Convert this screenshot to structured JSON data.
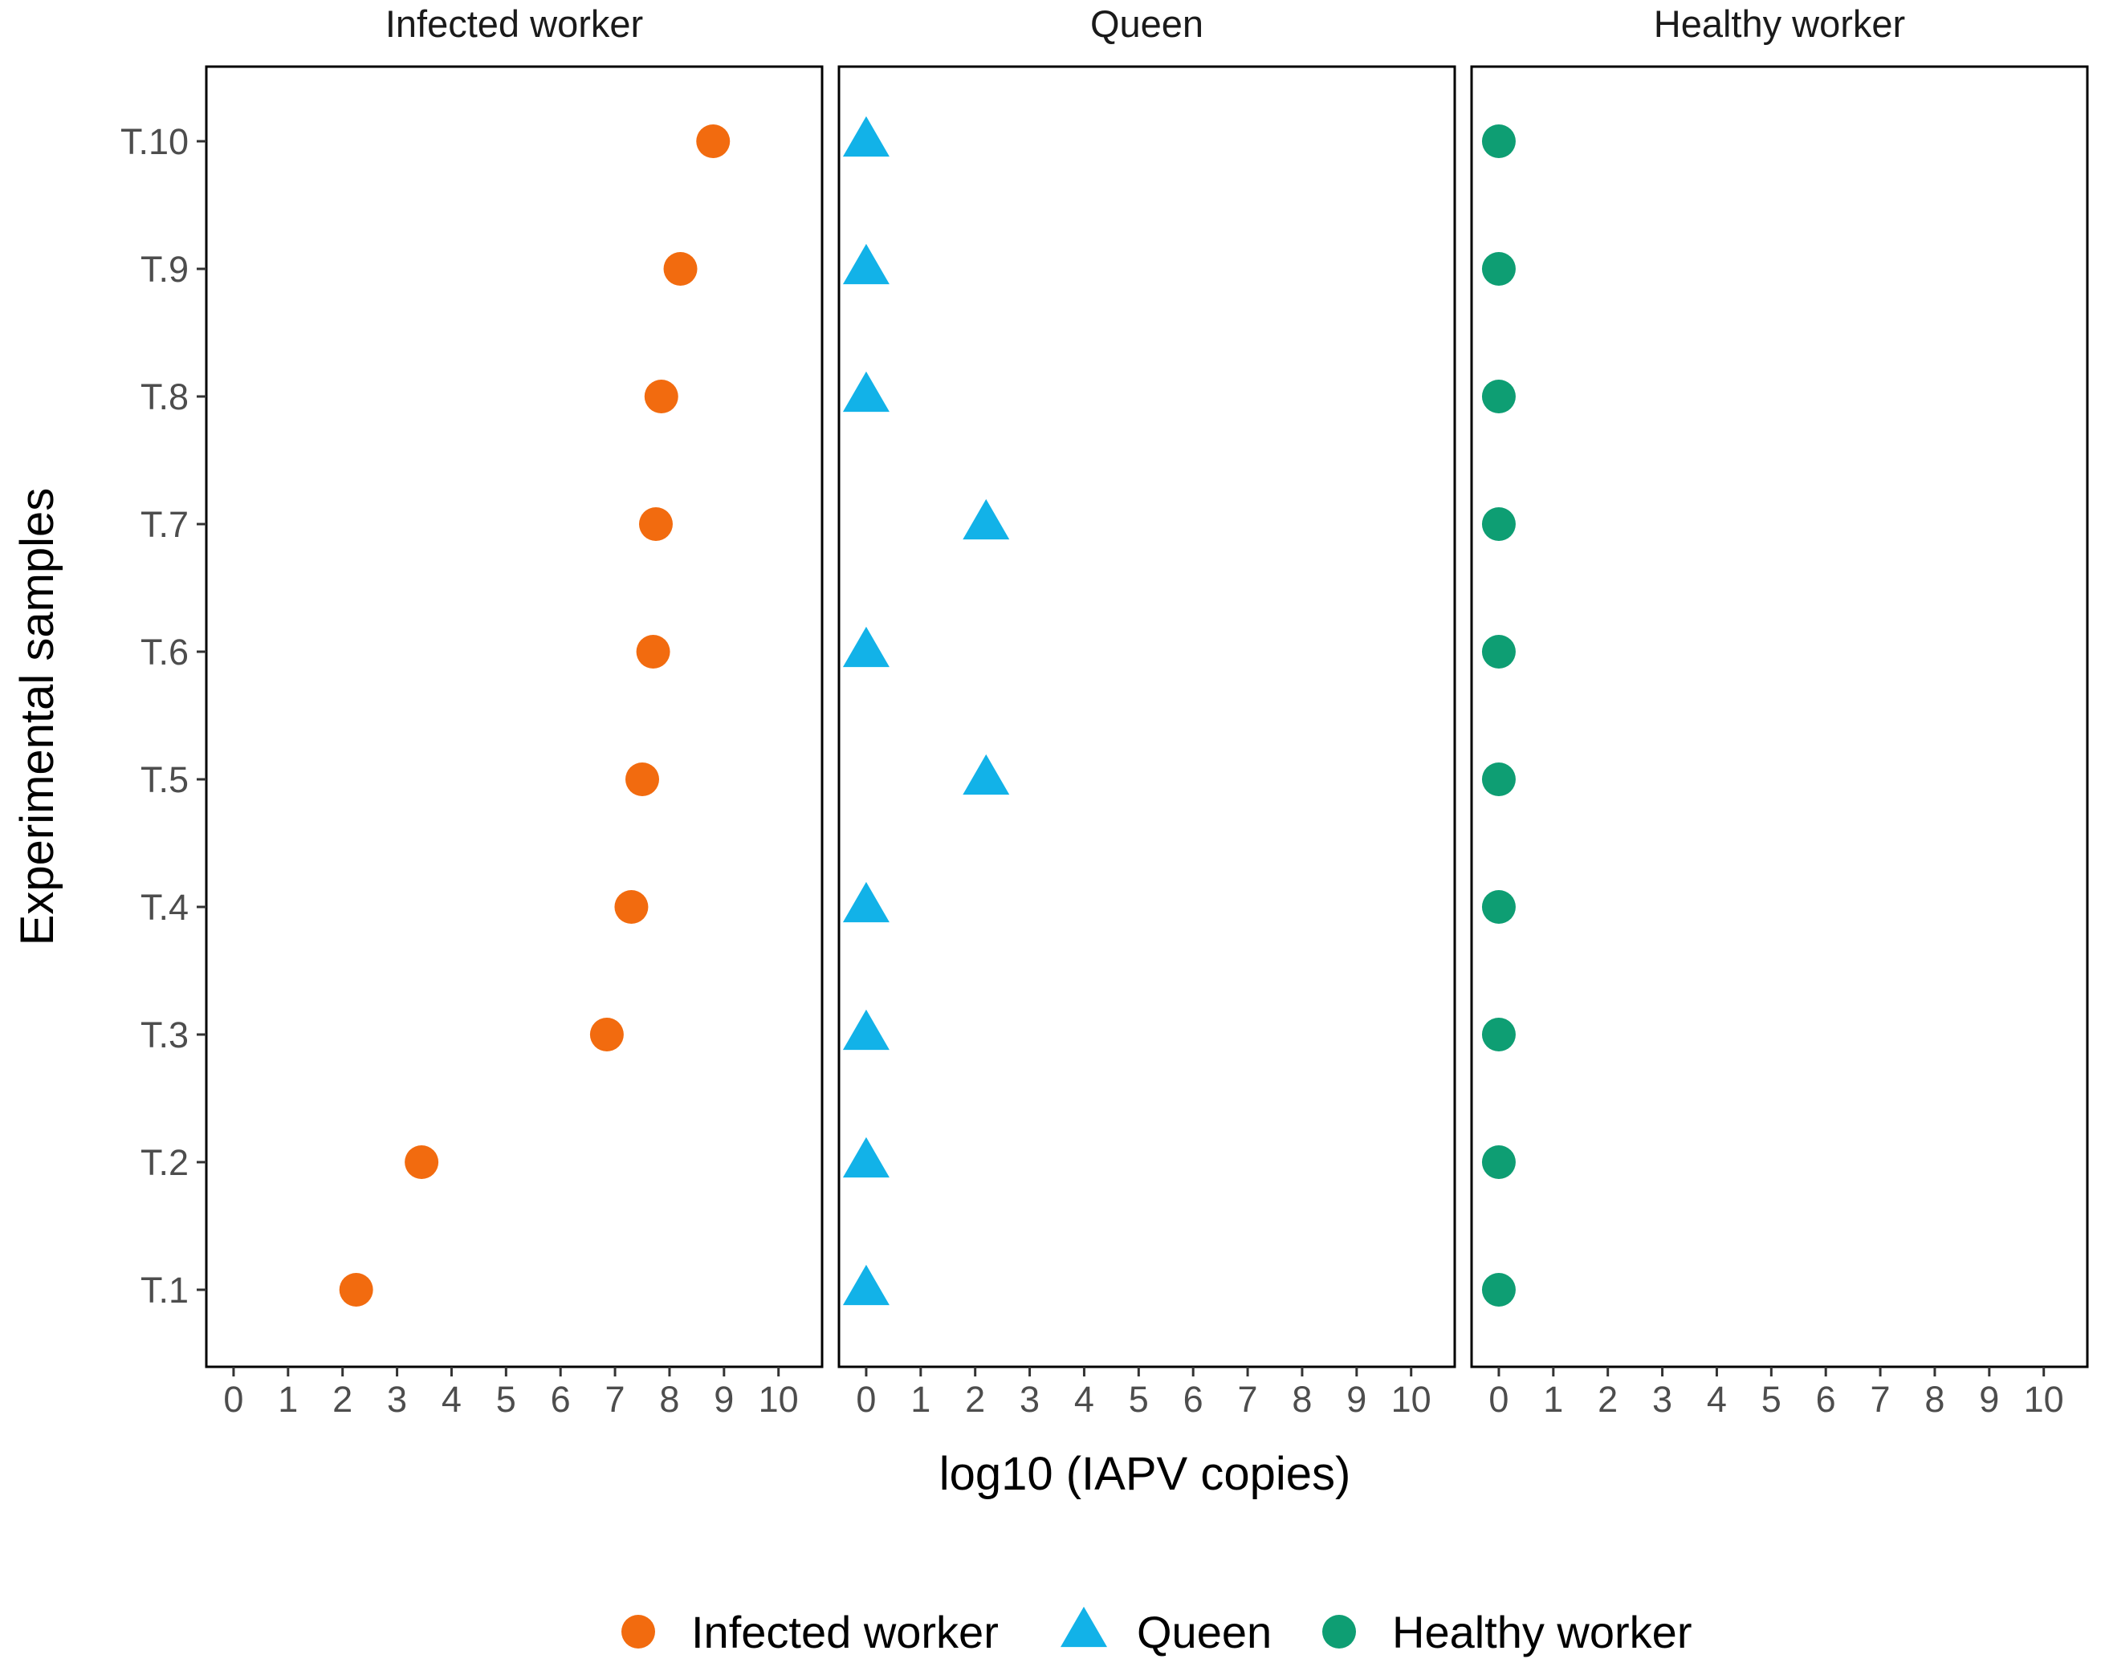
{
  "chart_data": {
    "type": "scatter",
    "title": "",
    "xlabel": "log10 (IAPV copies)",
    "ylabel": "Experimental samples",
    "xlim": [
      -0.5,
      10.8
    ],
    "x_ticks": [
      0,
      1,
      2,
      3,
      4,
      5,
      6,
      7,
      8,
      9,
      10
    ],
    "categories": [
      "T.1",
      "T.2",
      "T.3",
      "T.4",
      "T.5",
      "T.6",
      "T.7",
      "T.8",
      "T.9",
      "T.10"
    ],
    "legend_position": "bottom",
    "series": [
      {
        "name": "Infected worker",
        "panel": "Infected worker",
        "shape": "circle",
        "color": "#F26B0F",
        "values": [
          2.25,
          3.45,
          6.85,
          7.3,
          7.5,
          7.7,
          7.75,
          7.85,
          8.2,
          8.8
        ]
      },
      {
        "name": "Queen",
        "panel": "Queen",
        "shape": "triangle",
        "color": "#12B2E8",
        "values": [
          0,
          0,
          0,
          0,
          2.2,
          0,
          2.2,
          0,
          0,
          0
        ]
      },
      {
        "name": "Healthy worker",
        "panel": "Healthy worker",
        "shape": "circle",
        "color": "#0E9E73",
        "values": [
          0,
          0,
          0,
          0,
          0,
          0,
          0,
          0,
          0,
          0
        ]
      }
    ]
  }
}
